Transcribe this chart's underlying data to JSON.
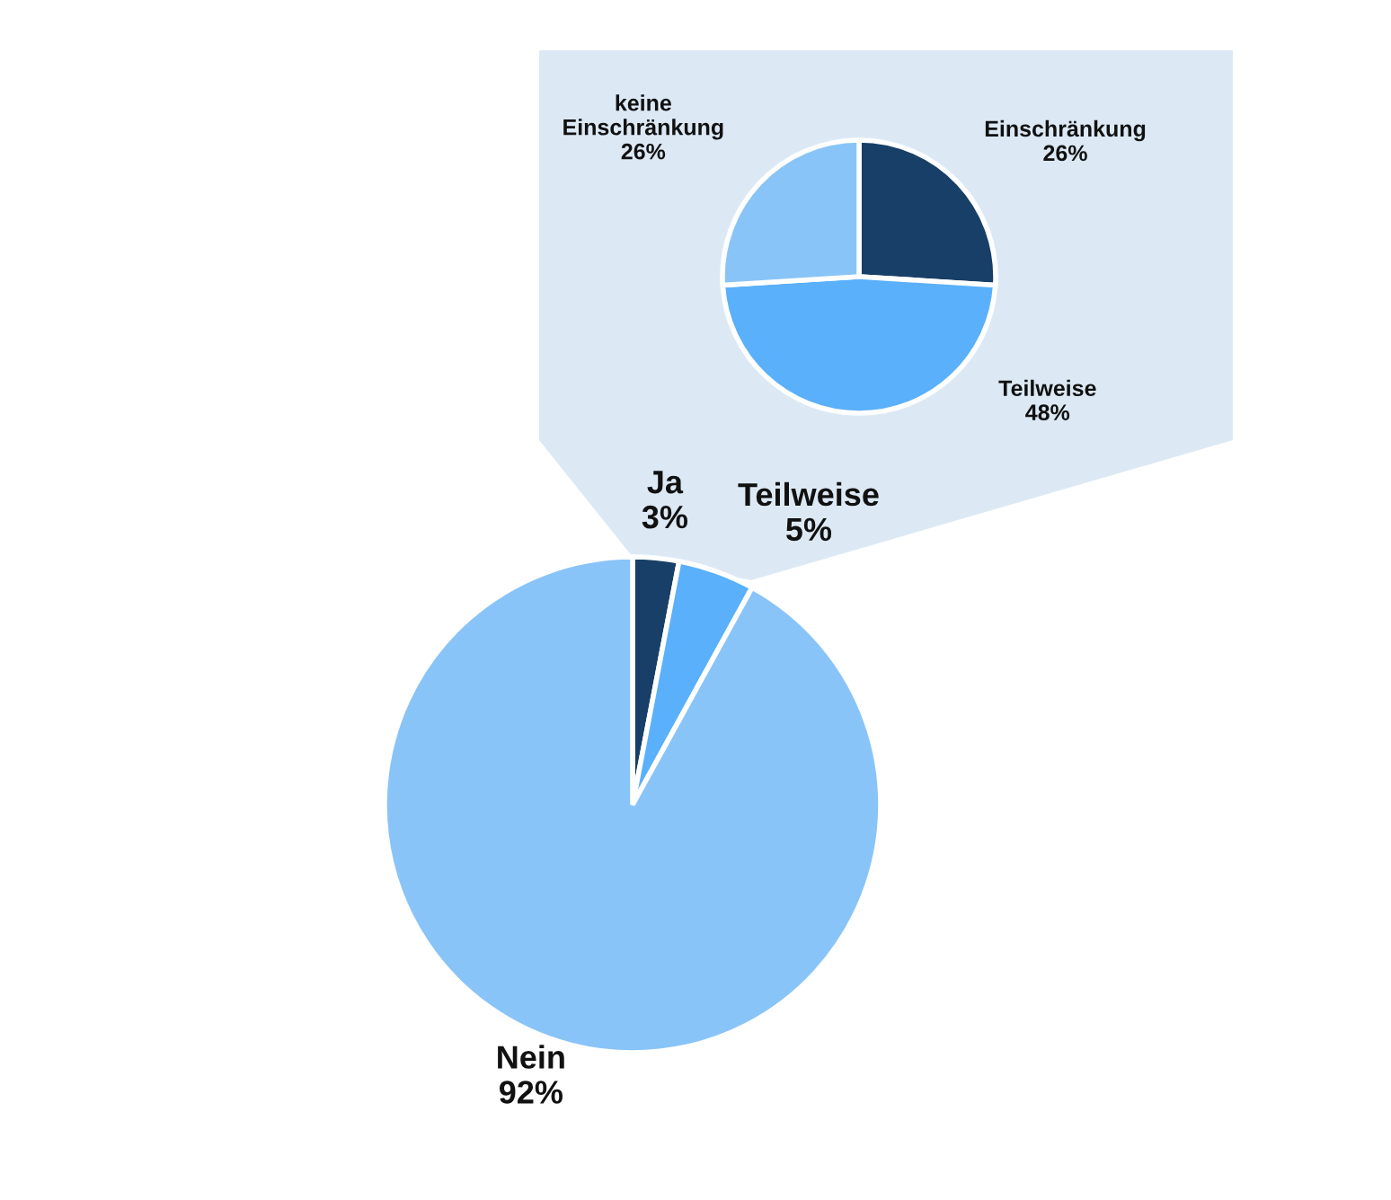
{
  "chart_data": [
    {
      "type": "pie",
      "categories": [
        "Ja",
        "Teilweise",
        "Nein"
      ],
      "values": [
        3,
        5,
        92
      ],
      "value_labels": [
        "3%",
        "5%",
        "92%"
      ],
      "colors": [
        "#173f67",
        "#5ab0fa",
        "#89c4f8"
      ]
    },
    {
      "type": "pie",
      "categories": [
        "Einschränkung",
        "Teilweise",
        "keine\nEinschränkung"
      ],
      "values": [
        26,
        48,
        26
      ],
      "value_labels": [
        "26%",
        "48%",
        "26%"
      ],
      "colors": [
        "#173f67",
        "#5ab0fa",
        "#89c4f8"
      ]
    }
  ]
}
